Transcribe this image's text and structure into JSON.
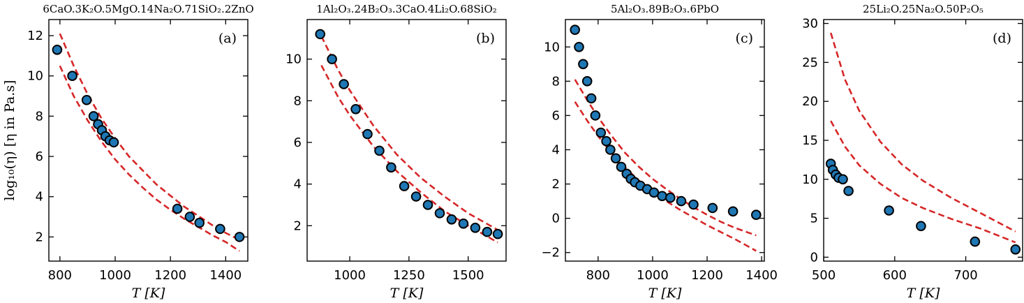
{
  "chart_data": [
    {
      "type": "scatter",
      "title": "6CaO.3K₂O.5MgO.14Na₂O.71SiO₂.2ZnO",
      "tag": "(a)",
      "xlabel": "T  [K]",
      "ylabel": "log₁₀(η)  [η in Pa.s]",
      "xlim": [
        760,
        1480
      ],
      "ylim": [
        0.8,
        12.8
      ],
      "xticks": [
        800,
        1000,
        1200,
        1400
      ],
      "yticks": [
        2,
        4,
        6,
        8,
        10,
        12
      ],
      "points": {
        "x": [
          790,
          845,
          897,
          922,
          938,
          952,
          965,
          980,
          995,
          1225,
          1270,
          1305,
          1380,
          1450
        ],
        "y": [
          11.3,
          10.0,
          8.8,
          8.0,
          7.6,
          7.3,
          7.0,
          6.8,
          6.7,
          3.4,
          3.0,
          2.7,
          2.4,
          2.0
        ]
      },
      "fits": [
        {
          "x": [
            800,
            850,
            900,
            950,
            1000,
            1050,
            1100,
            1150,
            1200,
            1250,
            1300,
            1350,
            1400,
            1450
          ],
          "y": [
            12.1,
            10.5,
            9.1,
            7.9,
            6.9,
            6.0,
            5.3,
            4.6,
            4.05,
            3.5,
            3.05,
            2.6,
            2.2,
            1.85
          ]
        },
        {
          "x": [
            800,
            850,
            900,
            950,
            1000,
            1050,
            1100,
            1150,
            1200,
            1250,
            1300,
            1350,
            1400,
            1450
          ],
          "y": [
            10.5,
            9.0,
            7.8,
            6.75,
            5.85,
            5.1,
            4.45,
            3.85,
            3.35,
            2.9,
            2.5,
            2.1,
            1.75,
            1.3
          ]
        }
      ]
    },
    {
      "type": "scatter",
      "title": "1Al₂O₃.24B₂O₃.3CaO.4Li₂O.68SiO₂",
      "tag": "(b)",
      "xlabel": "T  [K]",
      "ylabel": "",
      "xlim": [
        820,
        1660
      ],
      "ylim": [
        0.3,
        11.9
      ],
      "xticks": [
        1000,
        1250,
        1500
      ],
      "yticks": [
        2,
        4,
        6,
        8,
        10
      ],
      "points": {
        "x": [
          875,
          925,
          975,
          1025,
          1075,
          1125,
          1175,
          1230,
          1280,
          1330,
          1380,
          1430,
          1480,
          1530,
          1580,
          1625
        ],
        "y": [
          11.2,
          10.0,
          8.8,
          7.6,
          6.4,
          5.6,
          4.8,
          3.9,
          3.4,
          3.0,
          2.6,
          2.3,
          2.1,
          1.9,
          1.7,
          1.6
        ]
      },
      "fits": [
        {
          "x": [
            880,
            950,
            1000,
            1100,
            1200,
            1300,
            1400,
            1500,
            1625
          ],
          "y": [
            11.1,
            9.5,
            8.5,
            6.8,
            5.4,
            4.3,
            3.4,
            2.6,
            1.8
          ]
        },
        {
          "x": [
            880,
            950,
            1000,
            1100,
            1200,
            1300,
            1400,
            1500,
            1625
          ],
          "y": [
            9.7,
            8.2,
            7.3,
            5.8,
            4.6,
            3.6,
            2.7,
            2.0,
            1.2
          ]
        }
      ]
    },
    {
      "type": "scatter",
      "title": "5Al₂O₃.89B₂O₃.6PbO",
      "tag": "(c)",
      "xlabel": "T  [K]",
      "ylabel": "",
      "xlim": [
        680,
        1410
      ],
      "ylim": [
        -2.5,
        11.6
      ],
      "xticks": [
        800,
        1000,
        1200,
        1400
      ],
      "yticks": [
        -2,
        0,
        2,
        4,
        6,
        8,
        10
      ],
      "points": {
        "x": [
          715,
          730,
          745,
          760,
          775,
          790,
          810,
          830,
          845,
          865,
          885,
          905,
          920,
          935,
          955,
          980,
          1005,
          1035,
          1065,
          1105,
          1150,
          1220,
          1295,
          1380
        ],
        "y": [
          11.0,
          10.0,
          9.0,
          8.0,
          7.0,
          6.0,
          5.0,
          4.5,
          4.0,
          3.5,
          3.0,
          2.6,
          2.3,
          2.1,
          1.9,
          1.7,
          1.5,
          1.3,
          1.2,
          1.0,
          0.8,
          0.6,
          0.4,
          0.2
        ]
      },
      "fits": [
        {
          "x": [
            715,
            760,
            800,
            850,
            900,
            950,
            1000,
            1050,
            1100,
            1150,
            1200,
            1250,
            1300,
            1380
          ],
          "y": [
            8.1,
            6.9,
            5.9,
            4.8,
            3.8,
            3.0,
            2.3,
            1.7,
            1.15,
            0.65,
            0.2,
            -0.2,
            -0.55,
            -1.0
          ]
        },
        {
          "x": [
            715,
            760,
            800,
            850,
            900,
            950,
            1000,
            1050,
            1100,
            1150,
            1200,
            1250,
            1300,
            1380
          ],
          "y": [
            6.8,
            5.7,
            4.8,
            3.8,
            2.95,
            2.2,
            1.55,
            1.0,
            0.5,
            0.05,
            -0.4,
            -0.8,
            -1.2,
            -1.9
          ]
        }
      ]
    },
    {
      "type": "scatter",
      "title": "25Li₂O.25Na₂O.50P₂O₅",
      "tag": "(d)",
      "xlabel": "T  [K]",
      "ylabel": "",
      "xlim": [
        500,
        780
      ],
      "ylim": [
        -0.5,
        30.5
      ],
      "xticks": [
        500,
        600,
        700
      ],
      "yticks": [
        0,
        5,
        10,
        15,
        20,
        25,
        30
      ],
      "points": {
        "x": [
          510,
          513,
          517,
          521,
          527,
          535,
          592,
          637,
          713,
          770
        ],
        "y": [
          12.0,
          11.2,
          10.6,
          10.2,
          10.0,
          8.5,
          6.0,
          4.0,
          2.0,
          1.0
        ]
      },
      "fits": [
        {
          "x": [
            510,
            530,
            550,
            580,
            610,
            640,
            680,
            720,
            770
          ],
          "y": [
            28.8,
            22.8,
            18.8,
            14.8,
            11.9,
            9.8,
            7.6,
            5.7,
            3.3
          ]
        },
        {
          "x": [
            510,
            530,
            550,
            580,
            610,
            640,
            680,
            720,
            770
          ],
          "y": [
            17.5,
            14.2,
            11.8,
            9.4,
            7.6,
            6.3,
            4.9,
            3.7,
            1.9
          ]
        }
      ]
    }
  ]
}
